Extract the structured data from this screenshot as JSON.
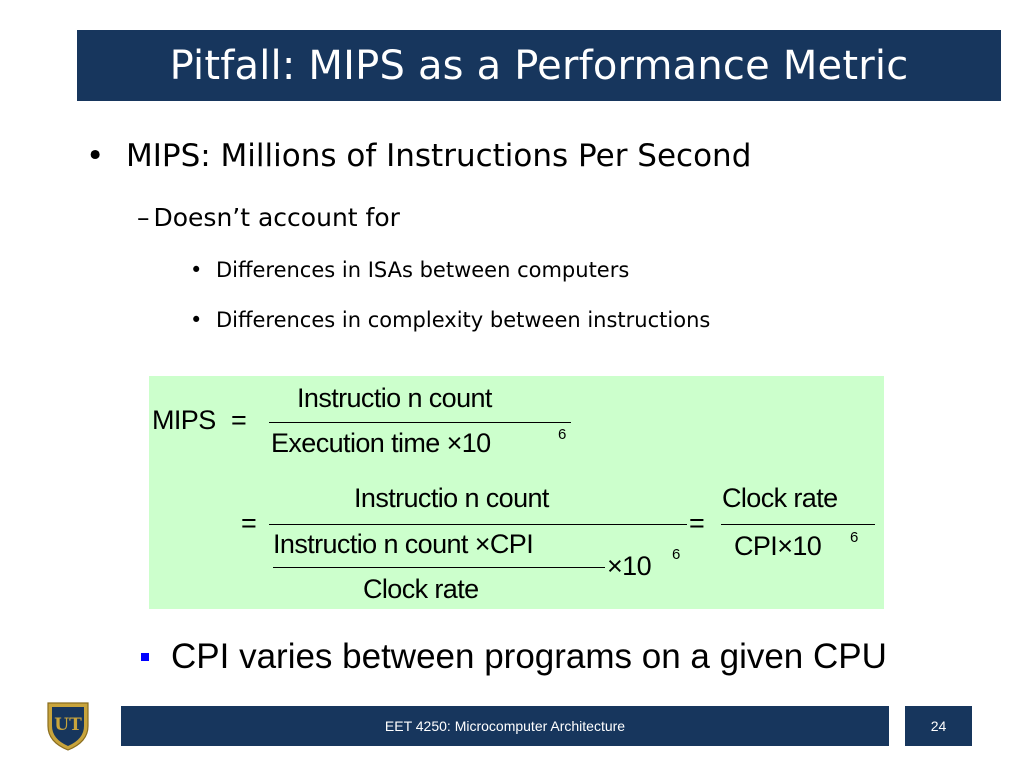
{
  "slide": {
    "title": "Pitfall: MIPS as a Performance Metric",
    "bullets": {
      "l1_marker": "•",
      "l1": "MIPS: Millions of Instructions Per Second",
      "l2_marker": "–",
      "l2": "Doesn’t account for",
      "l3_marker": "•",
      "l3": [
        "Differences in ISAs between computers",
        "Differences in complexity between instructions"
      ]
    },
    "formula": {
      "lhs": "MIPS",
      "eq1": "=",
      "num1": "Instructio n count",
      "den1": "Execution  time ×10",
      "exp1": "6",
      "eq2": "=",
      "num2": "Instructio n count",
      "inner_num": "Instructio n count ×CPI",
      "inner_den": "Clock rate",
      "times10": "×10",
      "exp2": "6",
      "eq3": "=",
      "num3": "Clock rate",
      "den3": "CPI×10",
      "exp3": "6"
    },
    "bottom_bullet": "CPI varies between programs on a given CPU",
    "footer": {
      "course": "EET 4250: Microcomputer Architecture",
      "page": "24"
    },
    "logo": {
      "text": "UT"
    },
    "colors": {
      "navy": "#17365d",
      "formula_bg": "#ccffcc",
      "bullet_square": "#0000ff",
      "logo_gold": "#c8a43c"
    }
  }
}
